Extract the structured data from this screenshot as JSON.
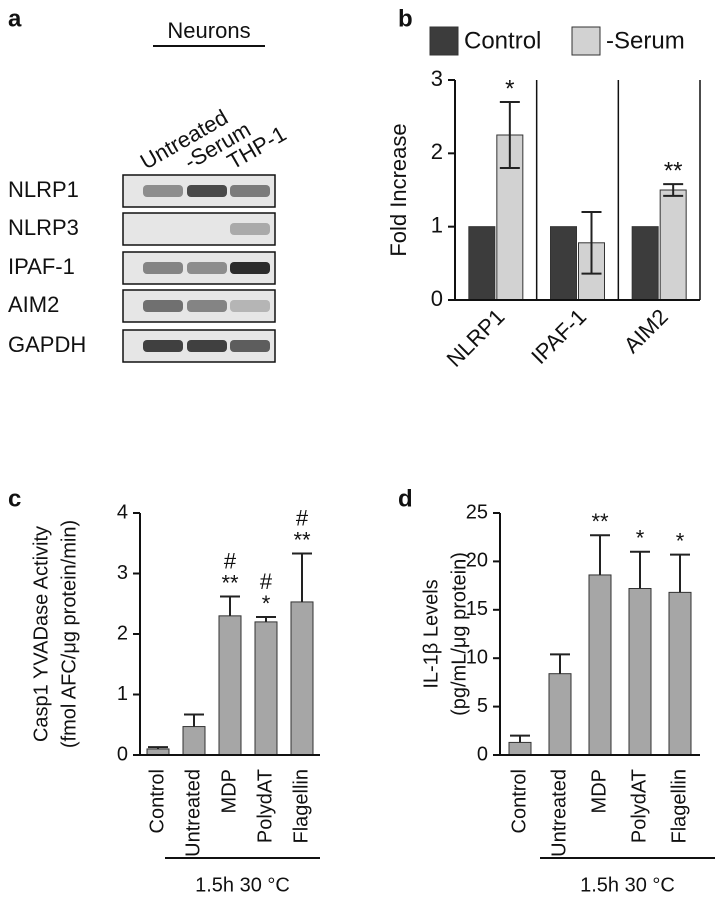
{
  "gel": {
    "panel_label": "a",
    "header": "Neurons",
    "lanes": [
      "Untreated",
      "-Serum",
      "THP-1"
    ],
    "rows": [
      "NLRP1",
      "NLRP3",
      "IPAF-1",
      "AIM2",
      "GAPDH"
    ]
  },
  "chart_data": [
    {
      "type": "bar",
      "panel_label": "b",
      "ylabel": [
        "Fold Increase"
      ],
      "categories": [
        "NLRP1",
        "IPAF-1",
        "AIM2"
      ],
      "series": [
        {
          "name": "Control",
          "color": "#3c3c3c",
          "values": [
            1,
            1,
            1
          ]
        },
        {
          "name": "-Serum",
          "color": "#d2d2d2",
          "values": [
            2.25,
            0.78,
            1.5
          ],
          "errors": [
            0.45,
            0.42,
            0.08
          ]
        }
      ],
      "annotations": [
        [
          "*"
        ],
        null,
        [
          "**"
        ]
      ],
      "ylim": [
        0,
        3
      ],
      "yticks": [
        0,
        1,
        2,
        3
      ],
      "legend": "top"
    },
    {
      "type": "bar",
      "panel_label": "c",
      "ylabel": [
        "Casp1 YVADase Activity",
        "(fmol AFC/μg protein/min)"
      ],
      "categories": [
        "Control",
        "Untreated",
        "MDP",
        "PolydAT",
        "Flagellin"
      ],
      "values": [
        0.1,
        0.47,
        2.3,
        2.2,
        2.53
      ],
      "errors": [
        0.03,
        0.2,
        0.32,
        0.08,
        0.8
      ],
      "color": "#a6a6a6",
      "annotations": [
        null,
        null,
        [
          "#",
          "**"
        ],
        [
          "#",
          "*"
        ],
        [
          "#",
          "**"
        ]
      ],
      "group_label": "1.5h 30 °C",
      "ylim": [
        0,
        4
      ],
      "yticks": [
        0,
        1,
        2,
        3,
        4
      ]
    },
    {
      "type": "bar",
      "panel_label": "d",
      "ylabel": [
        "IL-1β Levels",
        "(pg/mL/μg protein)"
      ],
      "categories": [
        "Control",
        "Untreated",
        "MDP",
        "PolydAT",
        "Flagellin"
      ],
      "values": [
        1.3,
        8.4,
        18.6,
        17.2,
        16.8
      ],
      "errors": [
        0.7,
        2.0,
        4.1,
        3.8,
        3.9
      ],
      "color": "#a6a6a6",
      "annotations": [
        null,
        null,
        [
          "**"
        ],
        [
          "*"
        ],
        [
          "*"
        ]
      ],
      "group_label": "1.5h 30 °C",
      "ylim": [
        0,
        25
      ],
      "yticks": [
        0,
        5,
        10,
        15,
        20,
        25
      ]
    }
  ]
}
